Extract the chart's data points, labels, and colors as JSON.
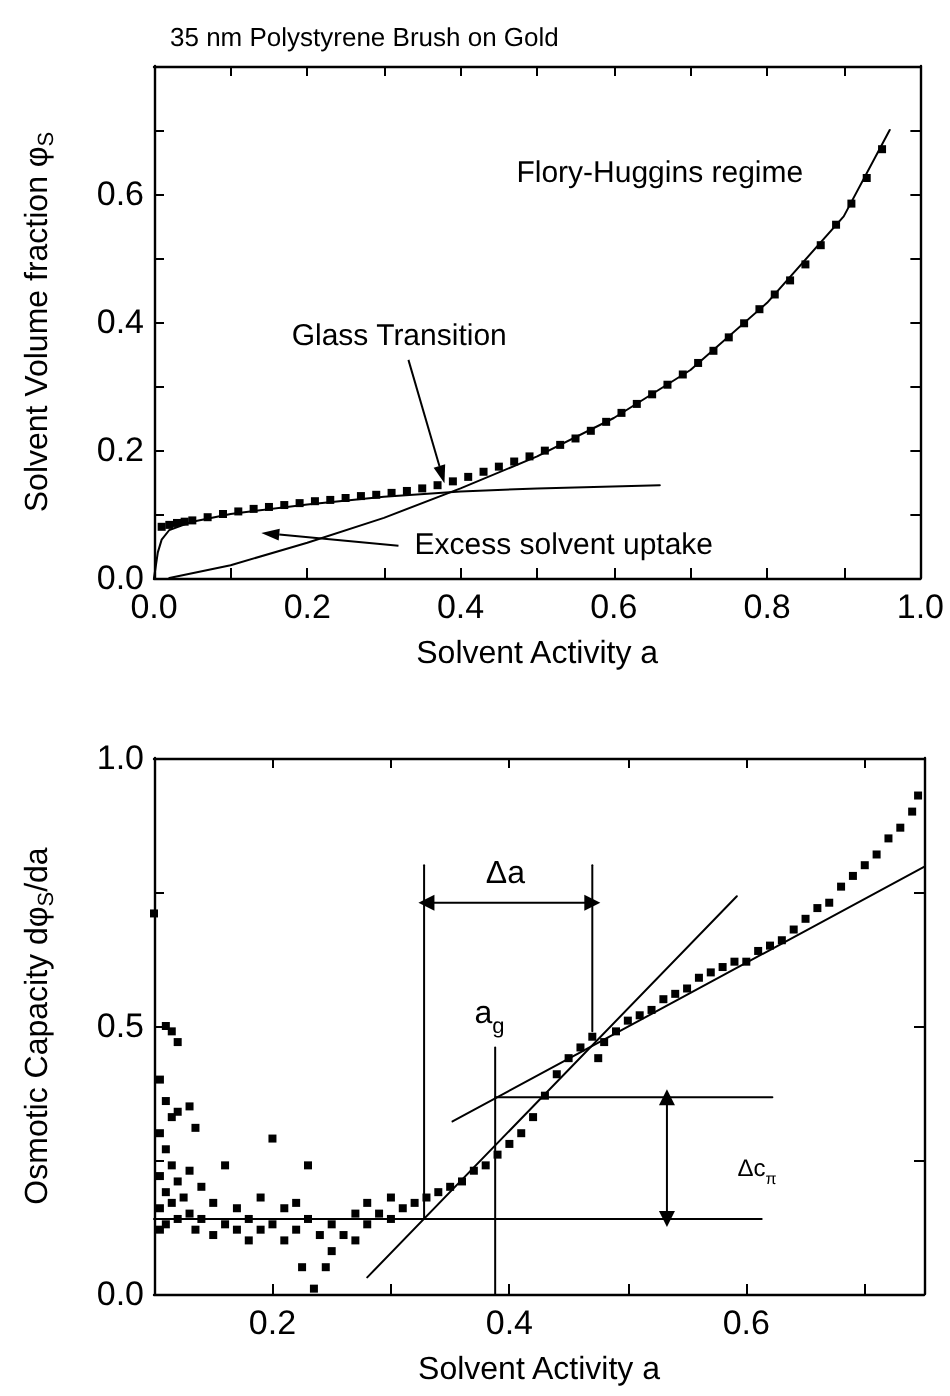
{
  "chart_data": [
    {
      "type": "scatter",
      "title": "35 nm Polystyrene Brush on Gold",
      "xlabel": "Solvent Activity a",
      "ylabel": "Solvent Volume fraction φ$_{S}$",
      "xlim": [
        0,
        1
      ],
      "xticks": [
        {
          "value": 0,
          "label": "0.0"
        },
        {
          "value": 0.1,
          "label": null
        },
        {
          "value": 0.2,
          "label": "0.2"
        },
        {
          "value": 0.3,
          "label": null
        },
        {
          "value": 0.4,
          "label": "0.4"
        },
        {
          "value": 0.5,
          "label": null
        },
        {
          "value": 0.6,
          "label": "0.6"
        },
        {
          "value": 0.7,
          "label": null
        },
        {
          "value": 0.8,
          "label": "0.8"
        },
        {
          "value": 0.9,
          "label": null
        },
        {
          "value": 1,
          "label": "1.0"
        }
      ],
      "ylim": [
        0,
        0.8
      ],
      "yticks": [
        {
          "value": 0,
          "label": "0.0"
        },
        {
          "value": 0.1,
          "label": null
        },
        {
          "value": 0.2,
          "label": "0.2"
        },
        {
          "value": 0.3,
          "label": null
        },
        {
          "value": 0.4,
          "label": "0.4"
        },
        {
          "value": 0.5,
          "label": null
        },
        {
          "value": 0.6,
          "label": "0.6"
        },
        {
          "value": 0.7,
          "label": null
        }
      ],
      "series": [
        {
          "marker": "square",
          "color": "#000000",
          "x": [
            0.01,
            0.02,
            0.03,
            0.04,
            0.05,
            0.07,
            0.09,
            0.11,
            0.13,
            0.15,
            0.17,
            0.19,
            0.21,
            0.23,
            0.25,
            0.27,
            0.29,
            0.31,
            0.33,
            0.35,
            0.37,
            0.39,
            0.41,
            0.43,
            0.45,
            0.47,
            0.49,
            0.51,
            0.53,
            0.55,
            0.57,
            0.59,
            0.61,
            0.63,
            0.65,
            0.67,
            0.69,
            0.71,
            0.73,
            0.75,
            0.77,
            0.79,
            0.81,
            0.83,
            0.85,
            0.87,
            0.89,
            0.91,
            0.93,
            0.95
          ],
          "values": [
            0.08,
            0.083,
            0.086,
            0.088,
            0.09,
            0.095,
            0.1,
            0.104,
            0.108,
            0.111,
            0.114,
            0.117,
            0.12,
            0.122,
            0.125,
            0.128,
            0.13,
            0.133,
            0.136,
            0.14,
            0.145,
            0.151,
            0.158,
            0.166,
            0.174,
            0.182,
            0.19,
            0.199,
            0.208,
            0.218,
            0.23,
            0.244,
            0.258,
            0.272,
            0.287,
            0.302,
            0.318,
            0.336,
            0.355,
            0.376,
            0.398,
            0.42,
            0.443,
            0.465,
            0.49,
            0.52,
            0.552,
            0.585,
            0.625,
            0.67
          ]
        },
        {
          "type": "line",
          "marker": "none",
          "color": "#000000",
          "x": [
            0.02,
            0.1,
            0.2,
            0.3,
            0.4,
            0.5,
            0.6,
            0.7,
            0.8,
            0.9,
            0.96
          ],
          "values": [
            0,
            0.02,
            0.055,
            0.094,
            0.14,
            0.19,
            0.25,
            0.325,
            0.43,
            0.565,
            0.7
          ]
        },
        {
          "type": "line",
          "marker": "none",
          "color": "#000000",
          "x": [
            0,
            0.005,
            0.01,
            0.02,
            0.05,
            0.1,
            0.2,
            0.3,
            0.4,
            0.5,
            0.66
          ],
          "values": [
            0,
            0.04,
            0.06,
            0.075,
            0.088,
            0.1,
            0.115,
            0.127,
            0.135,
            0.14,
            0.145
          ]
        }
      ],
      "annotations": [
        "Flory-Huggins regime",
        "Glass Transition",
        "Excess solvent uptake"
      ]
    },
    {
      "type": "scatter",
      "xlabel": "Solvent Activity a",
      "ylabel": "Osmotic Capacity dφ$_{S}$/da",
      "xlim": [
        0.1,
        0.75
      ],
      "xticks": [
        {
          "value": 0.2,
          "label": "0.2"
        },
        {
          "value": 0.3,
          "label": null
        },
        {
          "value": 0.4,
          "label": "0.4"
        },
        {
          "value": 0.5,
          "label": null
        },
        {
          "value": 0.6,
          "label": "0.6"
        },
        {
          "value": 0.7,
          "label": null
        }
      ],
      "ylim": [
        0,
        1
      ],
      "yticks": [
        {
          "value": 0,
          "label": "0.0"
        },
        {
          "value": 0.25,
          "label": null
        },
        {
          "value": 0.5,
          "label": "0.5"
        },
        {
          "value": 0.75,
          "label": null
        },
        {
          "value": 1,
          "label": "1.0"
        }
      ],
      "series": [
        {
          "marker": "square",
          "color": "#000000",
          "x": [
            0.1,
            0.105,
            0.105,
            0.105,
            0.105,
            0.105,
            0.11,
            0.11,
            0.11,
            0.11,
            0.11,
            0.115,
            0.115,
            0.115,
            0.115,
            0.12,
            0.12,
            0.12,
            0.12,
            0.125,
            0.13,
            0.13,
            0.13,
            0.135,
            0.135,
            0.14,
            0.14,
            0.15,
            0.15,
            0.16,
            0.16,
            0.17,
            0.17,
            0.18,
            0.18,
            0.19,
            0.19,
            0.2,
            0.2,
            0.21,
            0.21,
            0.22,
            0.22,
            0.225,
            0.23,
            0.23,
            0.235,
            0.24,
            0.245,
            0.25,
            0.25,
            0.26,
            0.27,
            0.27,
            0.28,
            0.28,
            0.29,
            0.3,
            0.3,
            0.31,
            0.32,
            0.33,
            0.34,
            0.35,
            0.36,
            0.37,
            0.38,
            0.39,
            0.4,
            0.41,
            0.42,
            0.43,
            0.44,
            0.45,
            0.46,
            0.47,
            0.475,
            0.48,
            0.49,
            0.5,
            0.51,
            0.52,
            0.53,
            0.54,
            0.55,
            0.56,
            0.57,
            0.58,
            0.59,
            0.6,
            0.61,
            0.62,
            0.63,
            0.64,
            0.65,
            0.66,
            0.67,
            0.68,
            0.69,
            0.7,
            0.71,
            0.72,
            0.73,
            0.74,
            0.745
          ],
          "values": [
            0.71,
            0.4,
            0.3,
            0.22,
            0.16,
            0.12,
            0.5,
            0.36,
            0.27,
            0.19,
            0.13,
            0.49,
            0.33,
            0.24,
            0.17,
            0.47,
            0.34,
            0.21,
            0.14,
            0.18,
            0.35,
            0.23,
            0.15,
            0.31,
            0.12,
            0.2,
            0.14,
            0.17,
            0.11,
            0.24,
            0.13,
            0.16,
            0.12,
            0.14,
            0.1,
            0.18,
            0.12,
            0.29,
            0.13,
            0.16,
            0.1,
            0.17,
            0.12,
            0.05,
            0.24,
            0.14,
            0.01,
            0.11,
            0.05,
            0.13,
            0.08,
            0.11,
            0.15,
            0.1,
            0.17,
            0.13,
            0.15,
            0.18,
            0.14,
            0.16,
            0.17,
            0.18,
            0.19,
            0.2,
            0.21,
            0.23,
            0.24,
            0.26,
            0.28,
            0.3,
            0.33,
            0.37,
            0.41,
            0.44,
            0.46,
            0.48,
            0.44,
            0.47,
            0.49,
            0.51,
            0.52,
            0.53,
            0.55,
            0.56,
            0.57,
            0.59,
            0.6,
            0.61,
            0.62,
            0.62,
            0.64,
            0.65,
            0.66,
            0.68,
            0.7,
            0.72,
            0.73,
            0.76,
            0.78,
            0.8,
            0.82,
            0.85,
            0.87,
            0.9,
            0.93
          ]
        },
        {
          "type": "line",
          "marker": "none",
          "color": "#000000",
          "x": [
            0.1,
            0.613
          ],
          "values": [
            0.14,
            0.14
          ]
        },
        {
          "type": "line",
          "marker": "none",
          "color": "#000000",
          "x": [
            0.28,
            0.592
          ],
          "values": [
            0.031,
            0.742
          ]
        },
        {
          "type": "line",
          "marker": "none",
          "color": "#000000",
          "x": [
            0.352,
            0.75
          ],
          "values": [
            0.322,
            0.797
          ]
        },
        {
          "type": "line",
          "marker": "none",
          "color": "#000000",
          "x": [
            0.388,
            0.622
          ],
          "values": [
            0.367,
            0.367
          ]
        },
        {
          "type": "line",
          "marker": "none",
          "color": "#000000",
          "x": [
            0.328,
            0.328
          ],
          "values": [
            0.14,
            0.8
          ]
        },
        {
          "type": "line",
          "marker": "none",
          "color": "#000000",
          "x": [
            0.47,
            0.47
          ],
          "values": [
            0.49,
            0.8
          ]
        },
        {
          "type": "line",
          "marker": "none",
          "color": "#000000",
          "x": [
            0.388,
            0.388
          ],
          "values": [
            0,
            0.46
          ]
        },
        {
          "type": "line",
          "marker": "triangle",
          "color": "#000000",
          "x": [
            0.33,
            0.47
          ],
          "values": [
            0.73,
            0.73
          ]
        },
        {
          "type": "line",
          "marker": "triangle",
          "color": "#000000",
          "x": [
            0.533,
            0.533
          ],
          "values": [
            0.14,
            0.367
          ]
        }
      ],
      "annotations": [
        {
          "text": "Δa",
          "x": 0.4,
          "y": 0.73
        },
        {
          "text": "a$_{g}$",
          "x": 0.39,
          "y": 0.46
        },
        {
          "text": "Δc$_{π}$",
          "x": 0.533,
          "y": 0.25
        }
      ]
    }
  ]
}
